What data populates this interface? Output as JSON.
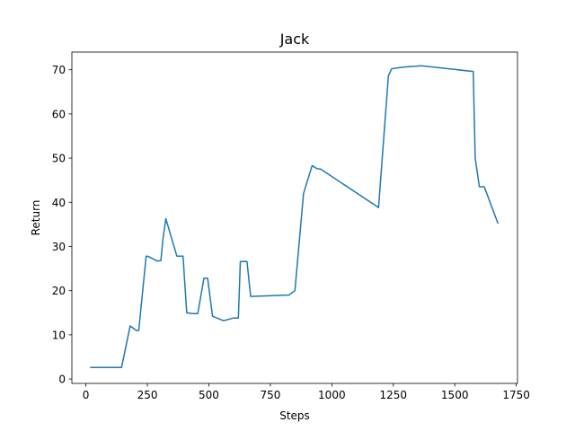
{
  "chart_data": {
    "type": "line",
    "title": "Jack",
    "xlabel": "Steps",
    "ylabel": "Return",
    "xlim": [
      -57,
      1755
    ],
    "ylim": [
      -1,
      74
    ],
    "xticks": [
      0,
      250,
      500,
      750,
      1000,
      1250,
      1500,
      1750
    ],
    "yticks": [
      0,
      10,
      20,
      30,
      40,
      50,
      60,
      70
    ],
    "grid": false,
    "legend": "none",
    "series": [
      {
        "color": "#1f77b4",
        "x": [
          20,
          145,
          180,
          205,
          215,
          245,
          255,
          290,
          305,
          313,
          325,
          370,
          395,
          410,
          430,
          455,
          480,
          495,
          515,
          560,
          600,
          620,
          628,
          655,
          670,
          825,
          850,
          885,
          920,
          940,
          955,
          1190,
          1230,
          1243,
          1252,
          1290,
          1365,
          1575,
          1583,
          1600,
          1620,
          1675
        ],
        "y": [
          2.6,
          2.6,
          12,
          11,
          11,
          27.8,
          27.7,
          26.7,
          26.8,
          31.5,
          36.3,
          27.8,
          27.8,
          15,
          14.8,
          14.8,
          22.8,
          22.8,
          14.2,
          13.2,
          13.8,
          13.8,
          26.6,
          26.6,
          18.7,
          19,
          20,
          42,
          48.3,
          47.6,
          47.5,
          38.8,
          68.6,
          70.2,
          70.3,
          70.6,
          70.9,
          69.6,
          50,
          43.5,
          43.5,
          35.3
        ]
      }
    ]
  }
}
